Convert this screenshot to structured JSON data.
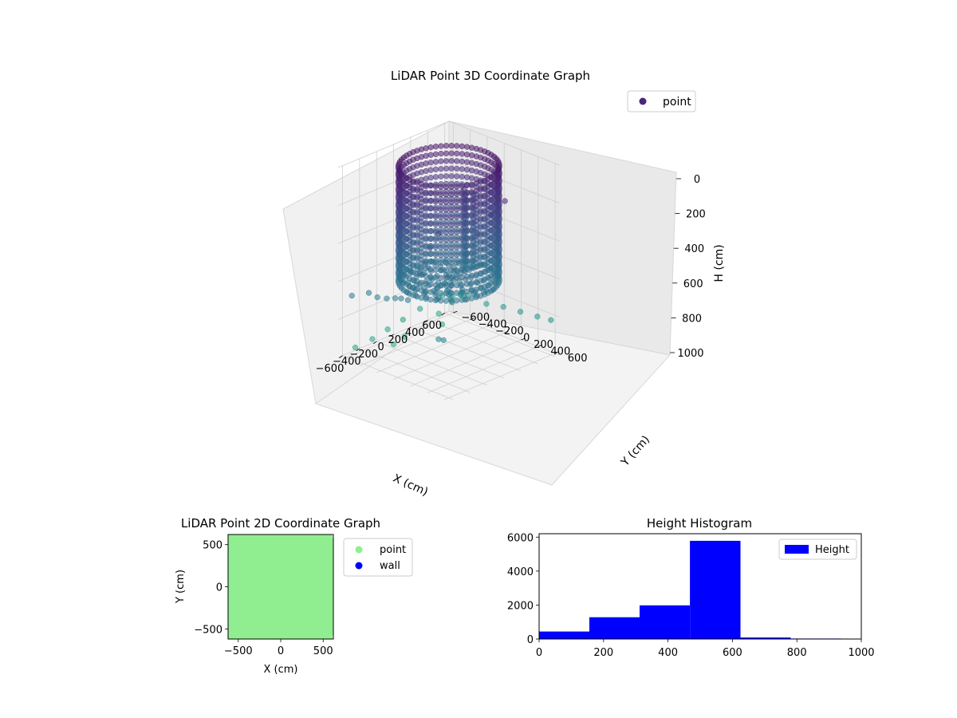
{
  "chart_data": [
    {
      "type": "scatter",
      "projection": "3d",
      "title": "LiDAR Point 3D Coordinate Graph",
      "xlabel": "X (cm)",
      "ylabel": "Y (cm)",
      "zlabel": "H (cm)",
      "xlim": [
        -650,
        650
      ],
      "ylim": [
        -650,
        650
      ],
      "zlim": [
        0,
        1000
      ],
      "z_inverted": true,
      "xticks": [
        "−600",
        "−400",
        "−200",
        "0",
        "200",
        "400",
        "600"
      ],
      "yticks": [
        "−600",
        "−400",
        "−200",
        "0",
        "200",
        "400",
        "600"
      ],
      "zticks": [
        "0",
        "200",
        "400",
        "600",
        "800",
        "1000"
      ],
      "grid": true,
      "colormap": "viridis",
      "legend": {
        "placement": "upper-right",
        "entries": [
          {
            "label": "point",
            "color": "#482878"
          }
        ]
      },
      "structure": {
        "ring_wall": {
          "radius_cm": 420,
          "height_range": [
            0,
            600
          ]
        },
        "floor_disk": {
          "radius_cm": 400,
          "height_range": [
            560,
            620
          ]
        },
        "posts": [
          {
            "x": 80,
            "y": 100,
            "height_range": [
              120,
              560
            ]
          },
          {
            "x": 180,
            "y": 20,
            "height_range": [
              180,
              560
            ]
          },
          {
            "x": 230,
            "y": 60,
            "height_range": [
              180,
              560
            ]
          }
        ],
        "outliers": [
          [
            -620,
            500,
            150
          ],
          [
            -600,
            380,
            250
          ],
          [
            -580,
            300,
            350
          ],
          [
            -560,
            220,
            420
          ],
          [
            -540,
            120,
            520
          ],
          [
            -520,
            40,
            600
          ],
          [
            -480,
            -80,
            620
          ],
          [
            -430,
            -200,
            650
          ],
          [
            -400,
            -330,
            680
          ],
          [
            -380,
            -460,
            700
          ],
          [
            -360,
            560,
            300
          ],
          [
            -260,
            600,
            200
          ],
          [
            -120,
            620,
            120
          ],
          [
            40,
            620,
            80
          ],
          [
            560,
            -640,
            900
          ],
          [
            600,
            -560,
            900
          ],
          [
            620,
            -480,
            880
          ],
          [
            600,
            -380,
            860
          ],
          [
            300,
            -640,
            920
          ],
          [
            100,
            -640,
            940
          ],
          [
            -100,
            -620,
            950
          ],
          [
            -300,
            -600,
            960
          ],
          [
            -520,
            -580,
            960
          ],
          [
            640,
            -200,
            880
          ],
          [
            640,
            0,
            860
          ],
          [
            640,
            200,
            850
          ],
          [
            640,
            400,
            840
          ],
          [
            640,
            560,
            830
          ],
          [
            -640,
            -300,
            600
          ],
          [
            -640,
            -500,
            650
          ],
          [
            -620,
            560,
            700
          ],
          [
            -580,
            460,
            720
          ],
          [
            500,
            -620,
            980
          ],
          [
            420,
            -500,
            1000
          ],
          [
            -200,
            -450,
            980
          ],
          [
            0,
            -520,
            990
          ]
        ]
      }
    },
    {
      "type": "scatter",
      "title": "LiDAR Point 2D Coordinate Graph",
      "xlabel": "X (cm)",
      "ylabel": "Y (cm)",
      "xlim": [
        -620,
        620
      ],
      "ylim": [
        -620,
        620
      ],
      "xticks": [
        "−500",
        "0",
        "500"
      ],
      "yticks": [
        "−500",
        "0",
        "500"
      ],
      "legend": {
        "placement": "outside-right",
        "entries": [
          {
            "label": "point",
            "color": "#90ee90"
          },
          {
            "label": "wall",
            "color": "#0000ff"
          }
        ]
      },
      "coverage": "points densely fill the region approx. X −620..620 and Y −620..620"
    },
    {
      "type": "bar",
      "subtype": "histogram",
      "title": "Height Histogram",
      "xlim": [
        0,
        1000
      ],
      "ylim": [
        0,
        6200
      ],
      "xticks": [
        "0",
        "200",
        "400",
        "600",
        "800",
        "1000"
      ],
      "yticks": [
        "0",
        "2000",
        "4000",
        "6000"
      ],
      "bin_edges": [
        0,
        156,
        312,
        468,
        625,
        781,
        937,
        1000
      ],
      "series": [
        {
          "name": "Height",
          "color": "#0000ff",
          "values": [
            440,
            1280,
            1980,
            5780,
            90,
            30,
            10
          ]
        }
      ],
      "legend": {
        "placement": "upper-right"
      }
    }
  ]
}
